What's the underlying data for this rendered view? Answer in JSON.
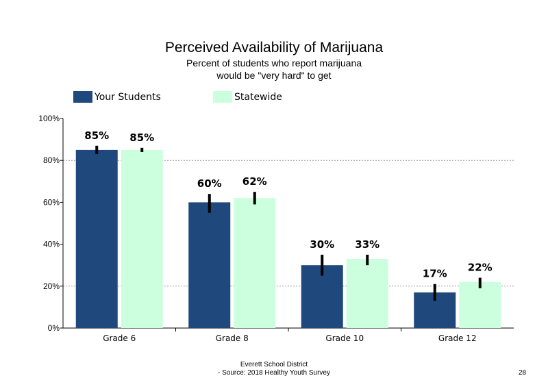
{
  "chart_data": {
    "type": "bar",
    "title": "Perceived Availability of Marijuana",
    "subtitle_line1": "Percent of students who report marijuana",
    "subtitle_line2": "would be \"very hard\" to get",
    "categories": [
      "Grade 6",
      "Grade 8",
      "Grade 10",
      "Grade 12"
    ],
    "series": [
      {
        "name": "Your Students",
        "color": "#1f497d",
        "values": [
          85,
          60,
          30,
          17
        ],
        "labels": [
          "85%",
          "60%",
          "30%",
          "17%"
        ],
        "error_low": [
          83,
          55,
          25,
          13
        ],
        "error_high": [
          87,
          64,
          35,
          21
        ]
      },
      {
        "name": "Statewide",
        "color": "#ccffdd",
        "values": [
          85,
          62,
          33,
          22
        ],
        "labels": [
          "85%",
          "62%",
          "33%",
          "22%"
        ],
        "error_low": [
          84,
          59,
          30,
          19
        ],
        "error_high": [
          86,
          65,
          35,
          24
        ]
      }
    ],
    "ylim": [
      0,
      100
    ],
    "yticks": [
      0,
      20,
      40,
      60,
      80,
      100
    ],
    "ytick_labels": [
      "0%",
      "20%",
      "40%",
      "60%",
      "80%",
      "100%"
    ],
    "gridlines": [
      20,
      80
    ],
    "legend_position": "top"
  },
  "footer": {
    "line1": "Everett School District",
    "line2": "- Source: 2018 Healthy  Youth Survey",
    "page_number": "28"
  }
}
